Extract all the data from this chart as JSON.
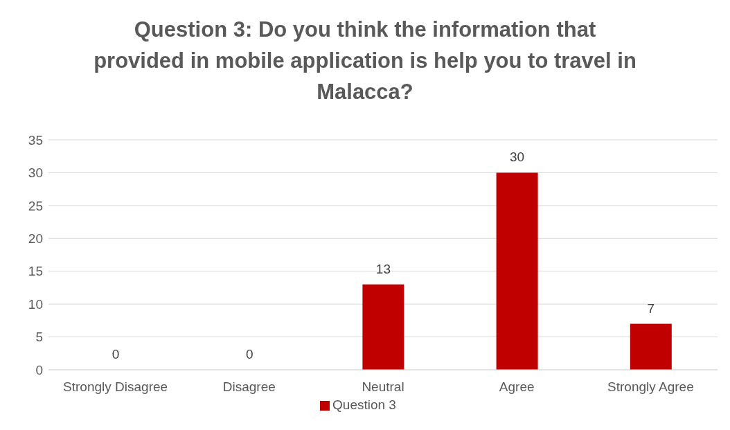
{
  "chart_data": {
    "type": "bar",
    "title": "Question 3: Do you think the information that provided in mobile application is help you to travel in Malacca?",
    "categories": [
      "Strongly Disagree",
      "Disagree",
      "Neutral",
      "Agree",
      "Strongly Agree"
    ],
    "series": [
      {
        "name": "Question 3",
        "color": "#c00000",
        "values": [
          0,
          0,
          13,
          30,
          7
        ]
      }
    ],
    "ylim": [
      0,
      35
    ],
    "yticks": [
      0,
      5,
      10,
      15,
      20,
      25,
      30,
      35
    ],
    "grid": "y",
    "legend": "bottom",
    "data_labels": true
  }
}
